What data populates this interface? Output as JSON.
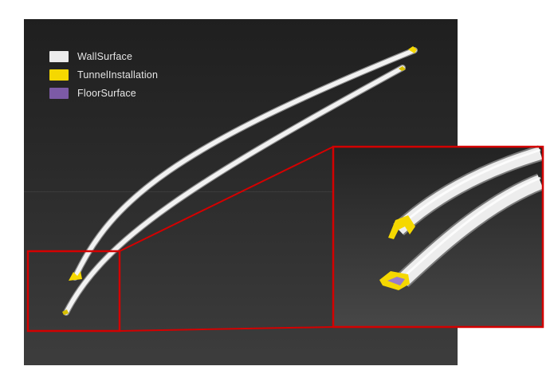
{
  "legend": [
    {
      "label": "WallSurface",
      "color": "#ececec"
    },
    {
      "label": "TunnelInstallation",
      "color": "#f5d800"
    },
    {
      "label": "FloorSurface",
      "color": "#7c5aa6"
    }
  ],
  "colors": {
    "background_dark": "#262626",
    "tunnel_wall": "#ececec",
    "installation": "#f5d800",
    "floor": "#7c5aa6",
    "zoom_box": "#d40000"
  }
}
